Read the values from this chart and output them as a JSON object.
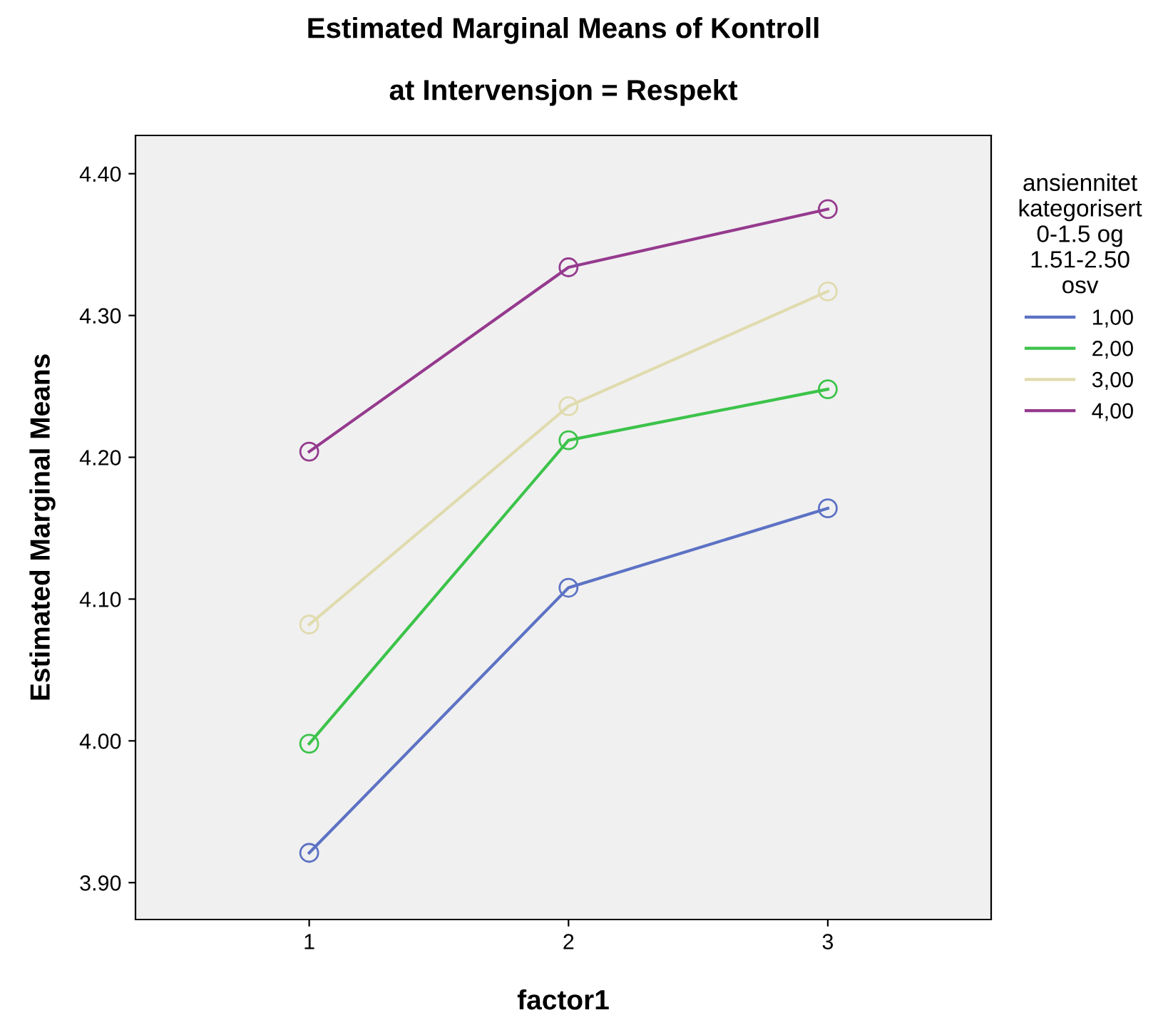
{
  "chart_data": {
    "type": "line",
    "title": "Estimated Marginal Means of Kontroll\n\nat Intervensjon = Respekt",
    "xlabel": "factor1",
    "ylabel": "Estimated Marginal Means",
    "legend_title": "ansiennitet\nkategorisert\n0-1.5 og\n1.51-2.50\nosv",
    "x": [
      1,
      2,
      3
    ],
    "xlim": [
      0.33,
      3.63
    ],
    "xticks": [
      1,
      2,
      3
    ],
    "ylim": [
      3.874,
      4.427
    ],
    "yticks": [
      {
        "value": 3.9,
        "label": "3.90"
      },
      {
        "value": 4.0,
        "label": "4.00"
      },
      {
        "value": 4.1,
        "label": "4.10"
      },
      {
        "value": 4.2,
        "label": "4.20"
      },
      {
        "value": 4.3,
        "label": "4.30"
      },
      {
        "value": 4.4,
        "label": "4.40"
      }
    ],
    "series": [
      {
        "name": "1,00",
        "color": "#5d72c4",
        "values": [
          3.921,
          4.108,
          4.164
        ]
      },
      {
        "name": "2,00",
        "color": "#3cc34a",
        "values": [
          3.998,
          4.212,
          4.248
        ]
      },
      {
        "name": "3,00",
        "color": "#e0dbae",
        "values": [
          4.082,
          4.236,
          4.317
        ]
      },
      {
        "name": "4,00",
        "color": "#953a8e",
        "values": [
          4.204,
          4.334,
          4.375
        ]
      }
    ],
    "marker": "circle",
    "line_style": "solid",
    "grid": false,
    "legend": "right"
  }
}
